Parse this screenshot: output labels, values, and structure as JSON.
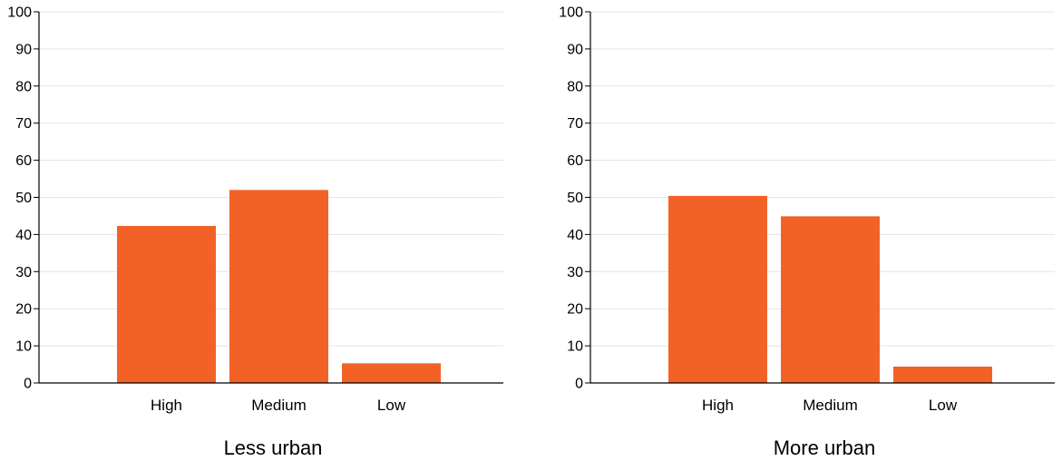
{
  "chart_data": [
    {
      "type": "bar",
      "title": "Less urban",
      "categories": [
        "High",
        "Medium",
        "Low"
      ],
      "values": [
        42.3,
        52.0,
        5.3
      ],
      "yticks": [
        "0",
        "10",
        "20",
        "30",
        "40",
        "50",
        "60",
        "70",
        "80",
        "90",
        "100"
      ],
      "ylim": [
        0,
        100
      ],
      "grid": true,
      "bar_color": "#f26227"
    },
    {
      "type": "bar",
      "title": "More urban",
      "categories": [
        "High",
        "Medium",
        "Low"
      ],
      "values": [
        50.4,
        44.9,
        4.4
      ],
      "yticks": [
        "0",
        "10",
        "20",
        "30",
        "40",
        "50",
        "60",
        "70",
        "80",
        "90",
        "100"
      ],
      "ylim": [
        0,
        100
      ],
      "grid": true,
      "bar_color": "#f26227"
    }
  ]
}
